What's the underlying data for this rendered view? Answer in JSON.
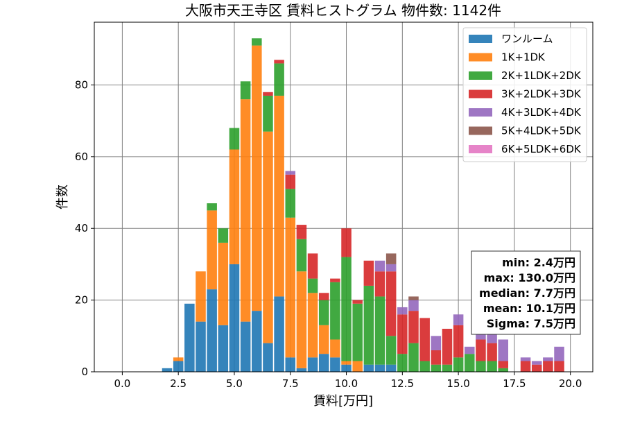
{
  "chart_data": {
    "type": "bar",
    "stacked": true,
    "title": "大阪市天王寺区 賃料ヒストグラム 物件数: 1142件",
    "xlabel": "賃料[万円]",
    "ylabel": "件数",
    "xlim": [
      -1.25,
      21.0
    ],
    "ylim": [
      0,
      97.5
    ],
    "xticks": [
      0,
      2.5,
      5,
      7.5,
      10,
      12.5,
      15,
      17.5,
      20
    ],
    "xtick_labels": [
      "0.0",
      "2.5",
      "5.0",
      "7.5",
      "10.0",
      "12.5",
      "15.0",
      "17.5",
      "20.0"
    ],
    "yticks": [
      0,
      20,
      40,
      60,
      80
    ],
    "ytick_labels": [
      "0",
      "20",
      "40",
      "60",
      "80"
    ],
    "grid": true,
    "legend_position": "top-right",
    "bin_width": 0.5,
    "bin_centers": [
      2.0,
      2.5,
      3.0,
      3.5,
      4.0,
      4.5,
      5.0,
      5.5,
      6.0,
      6.5,
      7.0,
      7.5,
      8.0,
      8.5,
      9.0,
      9.5,
      10.0,
      10.5,
      11.0,
      11.5,
      12.0,
      12.5,
      13.0,
      13.5,
      14.0,
      14.5,
      15.0,
      15.5,
      16.0,
      16.5,
      17.0,
      17.5,
      18.0,
      18.5,
      19.0,
      19.5
    ],
    "series": [
      {
        "name": "ワンルーム",
        "color": "#1f77b4",
        "values": [
          1,
          3,
          19,
          14,
          23,
          13,
          30,
          14,
          17,
          8,
          21,
          4,
          1,
          4,
          5,
          4,
          2,
          0,
          2,
          2,
          2,
          0,
          0,
          0,
          0,
          0,
          0,
          0,
          0,
          0,
          0,
          0,
          0,
          0,
          0,
          0
        ]
      },
      {
        "name": "1K+1DK",
        "color": "#ff7f0e",
        "values": [
          0,
          1,
          0,
          14,
          22,
          23,
          32,
          62,
          74,
          59,
          56,
          39,
          27,
          18,
          8,
          5,
          1,
          3,
          0,
          0,
          0,
          0,
          0,
          0,
          0,
          0,
          0,
          0,
          0,
          0,
          0,
          0,
          0,
          0,
          0,
          0
        ]
      },
      {
        "name": "2K+1LDK+2DK",
        "color": "#2ca02c",
        "values": [
          0,
          0,
          0,
          0,
          2,
          4,
          6,
          5,
          2,
          10,
          9,
          8,
          9,
          4,
          7,
          16,
          29,
          16,
          22,
          19,
          8,
          5,
          8,
          3,
          2,
          2,
          4,
          5,
          3,
          3,
          1,
          0,
          0,
          0,
          0,
          0
        ]
      },
      {
        "name": "3K+2LDK+3DK",
        "color": "#d62728",
        "values": [
          0,
          0,
          0,
          0,
          0,
          0,
          0,
          0,
          0,
          1,
          1,
          4,
          4,
          7,
          2,
          1,
          8,
          1,
          7,
          7,
          18,
          11,
          9,
          12,
          4,
          10,
          9,
          0,
          6,
          5,
          2,
          0,
          3,
          2,
          3,
          3
        ]
      },
      {
        "name": "4K+3LDK+4DK",
        "color": "#9467bd",
        "values": [
          0,
          0,
          0,
          0,
          0,
          0,
          0,
          0,
          0,
          0,
          0,
          1,
          0,
          0,
          0,
          0,
          0,
          0,
          0,
          3,
          2,
          2,
          3,
          0,
          4,
          0,
          3,
          2,
          2,
          4,
          6,
          0,
          1,
          1,
          1,
          4
        ]
      },
      {
        "name": "5K+4LDK+5DK",
        "color": "#8c564b",
        "values": [
          0,
          0,
          0,
          0,
          0,
          0,
          0,
          0,
          0,
          0,
          0,
          0,
          0,
          0,
          0,
          0,
          0,
          0,
          0,
          0,
          3,
          0,
          1,
          0,
          0,
          0,
          0,
          0,
          0,
          0,
          0,
          0,
          0,
          0,
          0,
          0
        ]
      },
      {
        "name": "6K+5LDK+6DK",
        "color": "#e377c2",
        "values": [
          0,
          0,
          0,
          0,
          0,
          0,
          0,
          0,
          0,
          0,
          0,
          0,
          0,
          0,
          0,
          0,
          0,
          0,
          0,
          0,
          0,
          0,
          0,
          0,
          0,
          0,
          0,
          0,
          0,
          0,
          0,
          0,
          0,
          0,
          0,
          0
        ]
      }
    ],
    "stats_box": [
      "min: 2.4万円",
      "max: 130.0万円",
      "median: 7.7万円",
      "mean: 10.1万円",
      "Sigma: 7.5万円"
    ]
  }
}
